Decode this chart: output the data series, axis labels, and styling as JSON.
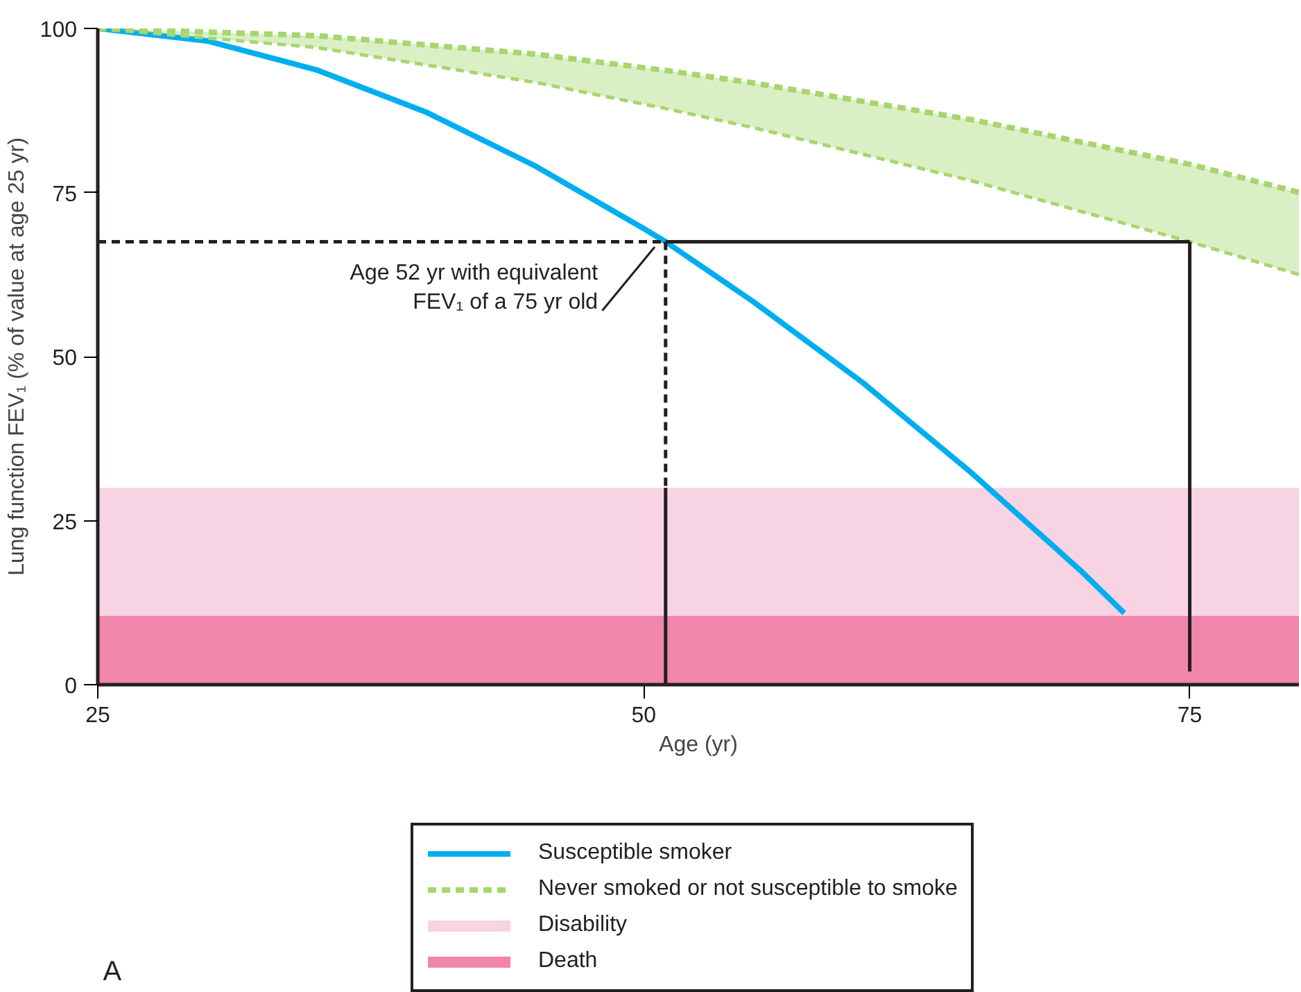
{
  "chart_data": {
    "type": "line",
    "xlabel": "Age (yr)",
    "ylabel": "Lung function FEV₁ (% of value at age 25 yr)",
    "xlim": [
      25,
      80
    ],
    "ylim": [
      0,
      100
    ],
    "xticks": [
      25,
      50,
      75
    ],
    "yticks": [
      0,
      25,
      50,
      75,
      100
    ],
    "grid": false,
    "legend": "bottom",
    "marker": "none",
    "series": [
      {
        "name": "Susceptible smoker",
        "color": "#00aeef",
        "x": [
          25,
          30,
          35,
          40,
          45,
          50,
          51,
          55,
          60,
          65,
          70,
          72
        ],
        "values": [
          100,
          98.1,
          93.7,
          87.3,
          79.1,
          69.5,
          67.5,
          58.4,
          46.1,
          32.3,
          17.4,
          10.9
        ]
      },
      {
        "name": "Never smoked or not susceptible to smoke",
        "color": "#a6d66e",
        "line_style": "dashed",
        "x": [
          25,
          35,
          45,
          51,
          55,
          65,
          75,
          80
        ],
        "values": [
          100,
          98.9,
          96.1,
          93.6,
          91.7,
          86.1,
          79.3,
          75
        ],
        "lower": [
          100,
          97.1,
          91.8,
          87.8,
          84.9,
          76.8,
          67.5,
          62.5
        ],
        "upper": [
          100,
          98.9,
          96.1,
          93.6,
          91.7,
          86.1,
          79.3,
          75
        ]
      },
      {
        "color": "#a6d66e",
        "line_style": "dashed",
        "x": [
          25,
          35,
          45,
          51,
          55,
          65,
          75,
          80
        ],
        "values": [
          100,
          97.1,
          91.8,
          87.8,
          84.9,
          76.8,
          67.5,
          62.5
        ]
      },
      {
        "color": "#231f20",
        "line_style": "dashed",
        "x": [
          25,
          51
        ],
        "values": [
          67.5,
          67.5
        ]
      },
      {
        "color": "#231f20",
        "line_style": "dashed",
        "x": [
          51,
          51
        ],
        "values": [
          67.5,
          30
        ]
      },
      {
        "color": "#231f20",
        "x": [
          51,
          51
        ],
        "values": [
          30,
          0
        ]
      },
      {
        "color": "#231f20",
        "x": [
          51,
          75
        ],
        "values": [
          67.5,
          67.5
        ]
      },
      {
        "color": "#231f20",
        "x": [
          75,
          75
        ],
        "values": [
          67.5,
          2
        ]
      }
    ],
    "bands": [
      {
        "axis": "y",
        "from": 10.5,
        "to": 30,
        "label": "Disability",
        "color": "#f8d3e4"
      },
      {
        "axis": "y",
        "from": 0,
        "to": 10.5,
        "label": "Death",
        "color": "#f185ab"
      }
    ],
    "annotations": [
      {
        "text": "Age 52 yr with equivalent\nFEV₁ of a 75 yr old",
        "x": 51,
        "y": 67.5
      },
      "A"
    ]
  }
}
